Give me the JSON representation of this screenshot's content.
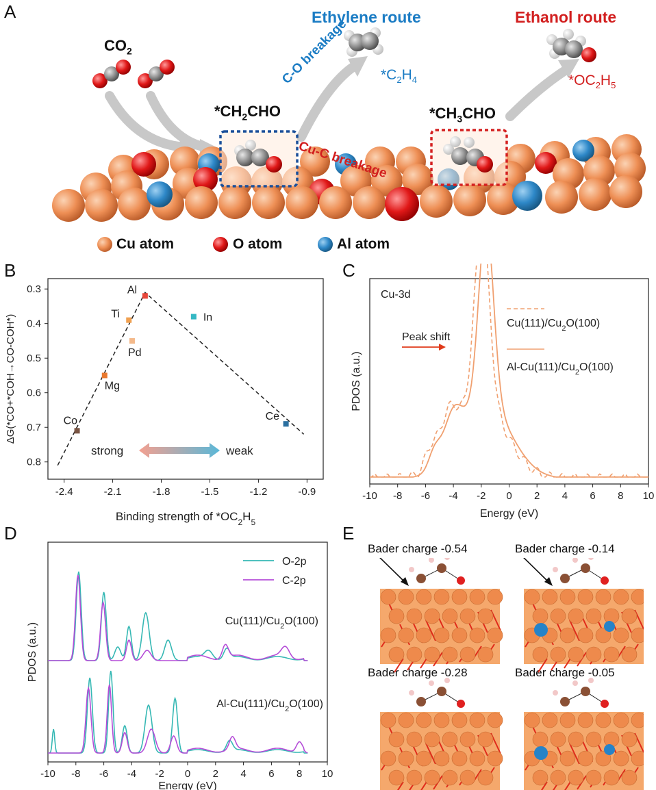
{
  "panels": {
    "A": "A",
    "B": "B",
    "C": "C",
    "D": "D",
    "E": "E"
  },
  "panel_a": {
    "co2": "CO",
    "co2_sub": "2",
    "ethylene_route": "Ethylene route",
    "ethanol_route": "Ethanol route",
    "c2h4": "*C",
    "c2h4_sub1": "2",
    "c2h4_mid": "H",
    "c2h4_sub2": "4",
    "oc2h5": "*OC",
    "oc2h5_sub1": "2",
    "oc2h5_mid": "H",
    "oc2h5_sub2": "5",
    "ch2cho": "*CH",
    "ch2cho_sub": "2",
    "ch2cho_tail": "CHO",
    "ch3cho": "*CH",
    "ch3cho_sub": "3",
    "ch3cho_tail": "CHO",
    "co_breakage": "C-O breakage",
    "cuc_breakage": "Cu-C breakage",
    "legend": [
      {
        "label": "Cu atom",
        "color": "#f08c52"
      },
      {
        "label": "O atom",
        "color": "#e02020"
      },
      {
        "label": "Al atom",
        "color": "#2b86c5"
      }
    ]
  },
  "chart_data": [
    {
      "type": "scatter",
      "panel": "B",
      "xlabel": "Binding strength of *OC",
      "xlabel_sub1": "2",
      "xlabel_mid": "H",
      "xlabel_sub2": "5",
      "ylabel": "ΔG(*CO+*COH→CO-COH*)",
      "xlim": [
        -2.5,
        -0.8
      ],
      "ylim": [
        0.85,
        0.27
      ],
      "xticks": [
        "-2.4",
        "-2.1",
        "-1.8",
        "-1.5",
        "-1.2",
        "-0.9"
      ],
      "yticks": [
        "0.3",
        "0.4",
        "0.5",
        "0.6",
        "0.7",
        "0.8"
      ],
      "points": [
        {
          "label": "Al",
          "x": -1.9,
          "y": 0.32,
          "color": "#e8473a"
        },
        {
          "label": "Ti",
          "x": -2.0,
          "y": 0.39,
          "color": "#f0a050"
        },
        {
          "label": "Pd",
          "x": -1.98,
          "y": 0.45,
          "color": "#f4b98a"
        },
        {
          "label": "Mg",
          "x": -2.15,
          "y": 0.55,
          "color": "#e8782e"
        },
        {
          "label": "Co",
          "x": -2.32,
          "y": 0.71,
          "color": "#7a5544"
        },
        {
          "label": "In",
          "x": -1.6,
          "y": 0.38,
          "color": "#35b8c4"
        },
        {
          "label": "Ce",
          "x": -1.03,
          "y": 0.69,
          "color": "#2a6fa0"
        }
      ],
      "trend": [
        {
          "x": -2.44,
          "y": 0.81
        },
        {
          "x": -1.9,
          "y": 0.31
        },
        {
          "x": -0.92,
          "y": 0.72
        }
      ],
      "strong": "strong",
      "weak": "weak"
    },
    {
      "type": "line",
      "panel": "C",
      "title": "Cu-3d",
      "xlabel": "Energy (eV)",
      "ylabel": "PDOS (a.u.)",
      "xlim": [
        -10,
        10
      ],
      "xticks": [
        "-10",
        "-8",
        "-6",
        "-4",
        "-2",
        "0",
        "2",
        "4",
        "6",
        "8",
        "10"
      ],
      "annotation": "Peak shift",
      "series": [
        {
          "name": "Cu(111)/Cu",
          "name_sub": "2",
          "name_tail": "O(100)",
          "style": "dashed",
          "color": "#f0a070"
        },
        {
          "name": "Al-Cu(111)/Cu",
          "name_sub": "2",
          "name_tail": "O(100)",
          "style": "solid",
          "color": "#f0a070"
        }
      ]
    },
    {
      "type": "line",
      "panel": "D",
      "xlabel": "Energy (eV)",
      "ylabel": "PDOS (a.u.)",
      "xlim": [
        -10,
        10
      ],
      "xticks": [
        "-10",
        "-8",
        "-6",
        "-4",
        "-2",
        "0",
        "2",
        "4",
        "6",
        "8",
        "10"
      ],
      "series": [
        {
          "name": "O-2p",
          "color": "#36b8b4"
        },
        {
          "name": "C-2p",
          "color": "#b54ed8"
        }
      ],
      "label_top": "Cu(111)/Cu",
      "label_top_sub": "2",
      "label_top_tail": "O(100)",
      "label_bottom": "Al-Cu(111)/Cu",
      "label_bottom_sub": "2",
      "label_bottom_tail": "O(100)"
    }
  ],
  "panel_e": {
    "labels": [
      "Bader charge -0.54",
      "Bader charge -0.14",
      "Bader charge -0.28",
      "Bader charge -0.05"
    ]
  }
}
